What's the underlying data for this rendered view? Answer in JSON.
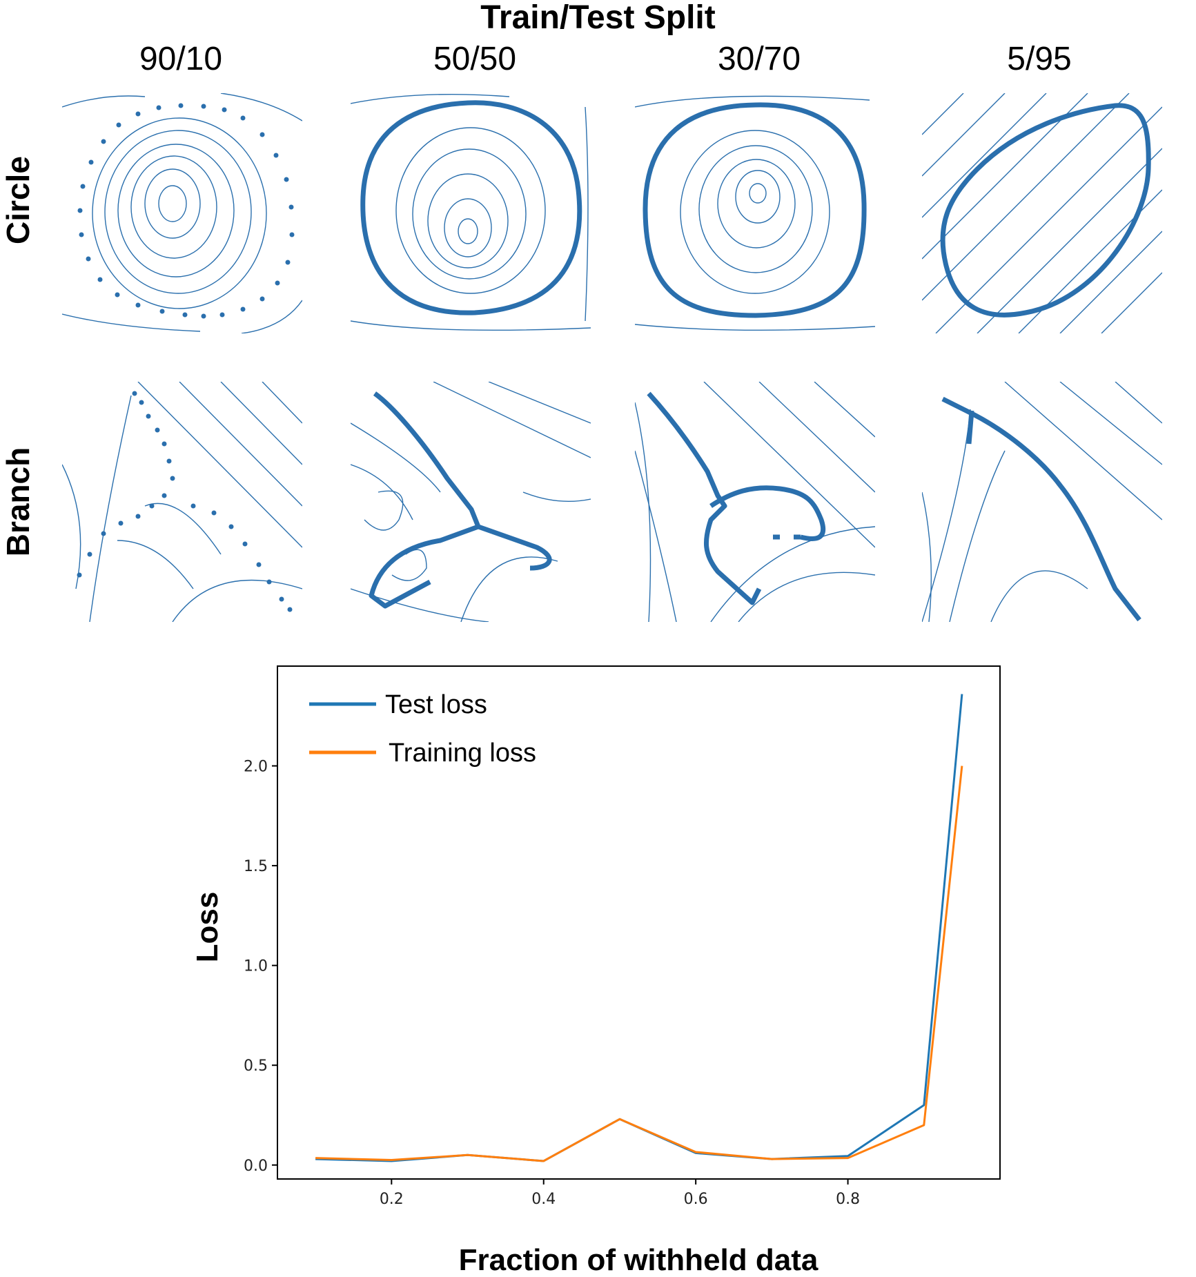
{
  "figure_title": "Train/Test Split",
  "splits": [
    "90/10",
    "50/50",
    "30/70",
    "5/95"
  ],
  "rows": [
    "Circle",
    "Branch"
  ],
  "colors": {
    "test": "#1f77b4",
    "train": "#ff7f0e",
    "stream": "#2a6fad"
  },
  "chart_data": {
    "type": "line",
    "xlabel": "Fraction of withheld data",
    "ylabel": "Loss",
    "xlim": [
      0.05,
      1.0
    ],
    "ylim": [
      -0.07,
      2.5
    ],
    "xticks": [
      "0.2",
      "0.4",
      "0.6",
      "0.8"
    ],
    "yticks": [
      "0.0",
      "0.5",
      "1.0",
      "1.5",
      "2.0"
    ],
    "x": [
      0.1,
      0.2,
      0.3,
      0.4,
      0.5,
      0.6,
      0.7,
      0.8,
      0.9,
      0.95
    ],
    "series": [
      {
        "name": "Test loss",
        "values": [
          0.03,
          0.02,
          0.05,
          0.02,
          0.23,
          0.06,
          0.03,
          0.045,
          0.3,
          2.36
        ]
      },
      {
        "name": "Training loss",
        "values": [
          0.035,
          0.025,
          0.05,
          0.02,
          0.23,
          0.065,
          0.03,
          0.035,
          0.2,
          2.0
        ]
      }
    ],
    "legend": "top-left"
  }
}
